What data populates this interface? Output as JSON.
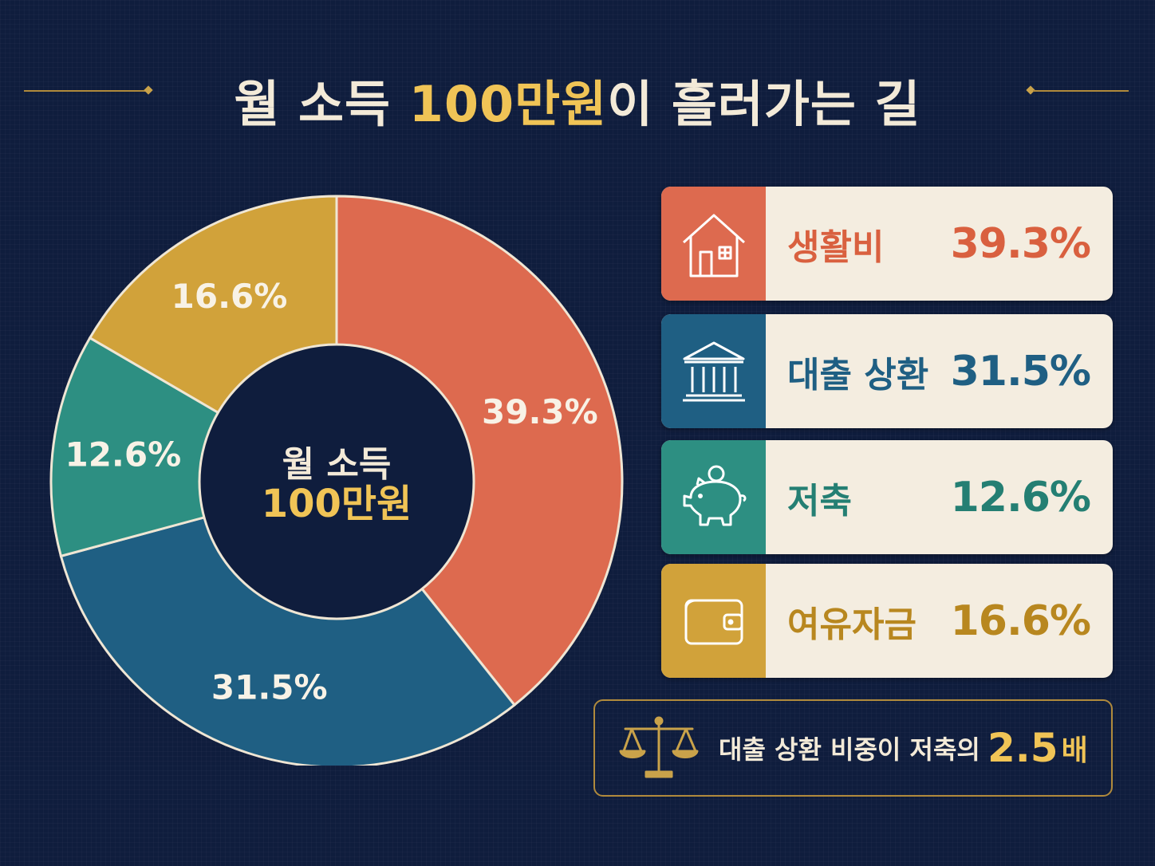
{
  "title": {
    "prefix": "월 소득 ",
    "highlight": "100만원",
    "suffix": "이 흘러가는 길"
  },
  "center": {
    "line1": "월 소득",
    "line2": "100만원"
  },
  "colors": {
    "living": "#dd6a4f",
    "loan": "#1f5f83",
    "savings": "#2d8f82",
    "spare": "#d1a23a",
    "accent": "#f0c456",
    "background": "#0f1d3d",
    "card": "#f4ede0"
  },
  "chart_data": {
    "type": "pie",
    "donut": true,
    "categories": [
      "생활비",
      "대출 상환",
      "저축",
      "여유자금"
    ],
    "values": [
      39.3,
      31.5,
      12.6,
      16.6
    ],
    "labels": [
      "39.3%",
      "31.5%",
      "12.6%",
      "16.6%"
    ],
    "colors": [
      "#dd6a4f",
      "#1f5f83",
      "#2d8f82",
      "#d1a23a"
    ],
    "title": "월 소득 100만원이 흘러가는 길"
  },
  "legend": [
    {
      "label": "생활비",
      "value": "39.3%",
      "icon": "house-icon",
      "color": "#dd6a4f"
    },
    {
      "label": "대출 상환",
      "value": "31.5%",
      "icon": "bank-icon",
      "color": "#1f5f83"
    },
    {
      "label": "저축",
      "value": "12.6%",
      "icon": "piggy-bank-icon",
      "color": "#2d8f82"
    },
    {
      "label": "여유자금",
      "value": "16.6%",
      "icon": "wallet-icon",
      "color": "#d1a23a"
    }
  ],
  "note": {
    "text": "대출 상환 비중이 저축의",
    "value": "2.5",
    "unit": "배",
    "icon": "scale-icon"
  }
}
